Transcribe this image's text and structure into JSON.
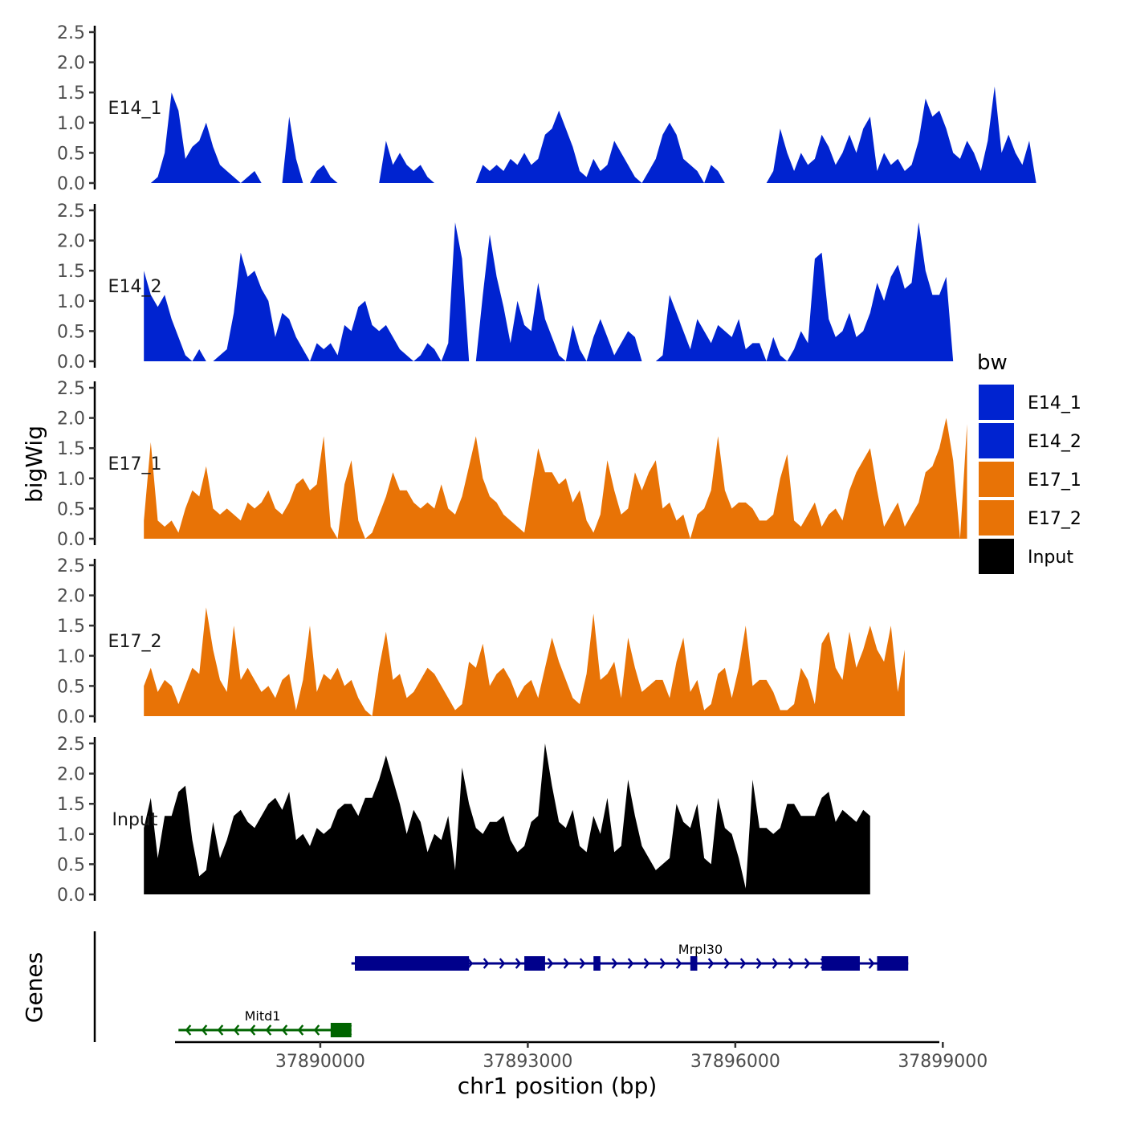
{
  "chart_data": {
    "type": "area",
    "title": "",
    "xlabel": "chr1 position (bp)",
    "ylabel": "bigWig",
    "gene_panel_label": "Genes",
    "legend_title": "bw",
    "xlim": [
      37887900,
      37898950
    ],
    "x_ticks": [
      37890000,
      37893000,
      37896000,
      37899000
    ],
    "x_tick_labels": [
      "37890000",
      "37893000",
      "37896000",
      "37899000"
    ],
    "ylim": [
      0,
      2.5
    ],
    "y_ticks": [
      0,
      0.5,
      1,
      1.5,
      2,
      2.5
    ],
    "y_tick_labels": [
      "0.0",
      "0.5",
      "1.0",
      "1.5",
      "2.0",
      "2.5"
    ],
    "x_start": 37887450,
    "x_step": 100,
    "series": [
      {
        "name": "E14_1",
        "color": "#0023D0",
        "values": [
          0,
          0,
          0.1,
          0.5,
          1.5,
          1.2,
          0.4,
          0.6,
          0.7,
          1,
          0.6,
          0.3,
          0.2,
          0.1,
          0,
          0.1,
          0.2,
          0,
          0,
          0,
          0,
          1.1,
          0.4,
          0,
          0,
          0.2,
          0.3,
          0.1,
          0,
          0,
          0,
          0,
          0,
          0,
          0,
          0.7,
          0.3,
          0.5,
          0.3,
          0.2,
          0.3,
          0.1,
          0,
          0,
          0,
          0,
          0,
          0,
          0,
          0.3,
          0.2,
          0.3,
          0.2,
          0.4,
          0.3,
          0.5,
          0.3,
          0.4,
          0.8,
          0.9,
          1.2,
          0.9,
          0.6,
          0.2,
          0.1,
          0.4,
          0.2,
          0.3,
          0.7,
          0.5,
          0.3,
          0.1,
          0,
          0.2,
          0.4,
          0.8,
          1,
          0.8,
          0.4,
          0.3,
          0.2,
          0,
          0.3,
          0.2,
          0,
          0,
          0,
          0,
          0,
          0,
          0,
          0.2,
          0.9,
          0.5,
          0.2,
          0.5,
          0.3,
          0.4,
          0.8,
          0.6,
          0.3,
          0.5,
          0.8,
          0.5,
          0.9,
          1.1,
          0.2,
          0.5,
          0.3,
          0.4,
          0.2,
          0.3,
          0.7,
          1.4,
          1.1,
          1.2,
          0.9,
          0.5,
          0.4,
          0.7,
          0.5,
          0.2,
          0.7,
          1.6,
          0.5,
          0.8,
          0.5,
          0.3,
          0.7,
          0
        ]
      },
      {
        "name": "E14_2",
        "color": "#0023D0",
        "values": [
          1.5,
          1.1,
          0.9,
          1.1,
          0.7,
          0.4,
          0.1,
          0,
          0.2,
          0,
          0,
          0.1,
          0.2,
          0.8,
          1.8,
          1.4,
          1.5,
          1.2,
          1,
          0.4,
          0.8,
          0.7,
          0.4,
          0.2,
          0,
          0.3,
          0.2,
          0.3,
          0.1,
          0.6,
          0.5,
          0.9,
          1,
          0.6,
          0.5,
          0.6,
          0.4,
          0.2,
          0.1,
          0,
          0.1,
          0.3,
          0.2,
          0,
          0.3,
          2.3,
          1.7,
          0,
          0,
          1.1,
          2.1,
          1.4,
          0.9,
          0.3,
          1,
          0.6,
          0.5,
          1.3,
          0.7,
          0.4,
          0.1,
          0,
          0.6,
          0.2,
          0,
          0.4,
          0.7,
          0.4,
          0.1,
          0.3,
          0.5,
          0.4,
          0,
          0,
          0,
          0.1,
          1.1,
          0.8,
          0.5,
          0.2,
          0.7,
          0.5,
          0.3,
          0.6,
          0.5,
          0.4,
          0.7,
          0.2,
          0.3,
          0.3,
          0,
          0.4,
          0.1,
          0,
          0.2,
          0.5,
          0.3,
          1.7,
          1.8,
          0.7,
          0.4,
          0.5,
          0.8,
          0.4,
          0.5,
          0.8,
          1.3,
          1,
          1.4,
          1.6,
          1.2,
          1.3,
          2.3,
          1.5,
          1.1,
          1.1,
          1.4,
          0
        ]
      },
      {
        "name": "E17_1",
        "color": "#E87306",
        "values": [
          0.3,
          1.6,
          0.3,
          0.2,
          0.3,
          0.1,
          0.5,
          0.8,
          0.7,
          1.2,
          0.5,
          0.4,
          0.5,
          0.4,
          0.3,
          0.6,
          0.5,
          0.6,
          0.8,
          0.5,
          0.4,
          0.6,
          0.9,
          1,
          0.8,
          0.9,
          1.7,
          0.2,
          0,
          0.9,
          1.3,
          0.3,
          0,
          0.1,
          0.4,
          0.7,
          1.1,
          0.8,
          0.8,
          0.6,
          0.5,
          0.6,
          0.5,
          0.9,
          0.5,
          0.4,
          0.7,
          1.2,
          1.7,
          1,
          0.7,
          0.6,
          0.4,
          0.3,
          0.2,
          0.1,
          0.8,
          1.5,
          1.1,
          1.1,
          0.9,
          1,
          0.6,
          0.8,
          0.3,
          0.1,
          0.4,
          1.3,
          0.8,
          0.4,
          0.5,
          1.1,
          0.8,
          1.1,
          1.3,
          0.5,
          0.6,
          0.3,
          0.4,
          0,
          0.4,
          0.5,
          0.8,
          1.7,
          0.8,
          0.5,
          0.6,
          0.6,
          0.5,
          0.3,
          0.3,
          0.4,
          1,
          1.4,
          0.3,
          0.2,
          0.4,
          0.6,
          0.2,
          0.4,
          0.5,
          0.3,
          0.8,
          1.1,
          1.3,
          1.5,
          0.8,
          0.2,
          0.4,
          0.6,
          0.2,
          0.4,
          0.6,
          1.1,
          1.2,
          1.5,
          2,
          1.3,
          0,
          1.9
        ]
      },
      {
        "name": "E17_2",
        "color": "#E87306",
        "values": [
          0.5,
          0.8,
          0.4,
          0.6,
          0.5,
          0.2,
          0.5,
          0.8,
          0.7,
          1.8,
          1.1,
          0.6,
          0.4,
          1.5,
          0.6,
          0.8,
          0.6,
          0.4,
          0.5,
          0.3,
          0.6,
          0.7,
          0.1,
          0.6,
          1.5,
          0.4,
          0.7,
          0.6,
          0.8,
          0.5,
          0.6,
          0.3,
          0.1,
          0,
          0.8,
          1.4,
          0.6,
          0.7,
          0.3,
          0.4,
          0.6,
          0.8,
          0.7,
          0.5,
          0.3,
          0.1,
          0.2,
          0.9,
          0.8,
          1.2,
          0.5,
          0.7,
          0.8,
          0.6,
          0.3,
          0.5,
          0.6,
          0.3,
          0.8,
          1.3,
          0.9,
          0.6,
          0.3,
          0.2,
          0.7,
          1.7,
          0.6,
          0.7,
          0.9,
          0.3,
          1.3,
          0.8,
          0.4,
          0.5,
          0.6,
          0.6,
          0.3,
          0.9,
          1.3,
          0.4,
          0.6,
          0.1,
          0.2,
          0.7,
          0.8,
          0.3,
          0.8,
          1.5,
          0.5,
          0.6,
          0.6,
          0.4,
          0.1,
          0.1,
          0.2,
          0.8,
          0.6,
          0.2,
          1.2,
          1.4,
          0.8,
          0.6,
          1.4,
          0.8,
          1.1,
          1.5,
          1.1,
          0.9,
          1.5,
          0.4,
          1.1
        ]
      },
      {
        "name": "Input",
        "color": "#000000",
        "values": [
          1.1,
          1.6,
          0.6,
          1.3,
          1.3,
          1.7,
          1.8,
          0.9,
          0.3,
          0.4,
          1.2,
          0.6,
          0.9,
          1.3,
          1.4,
          1.2,
          1.1,
          1.3,
          1.5,
          1.6,
          1.4,
          1.7,
          0.9,
          1,
          0.8,
          1.1,
          1,
          1.1,
          1.4,
          1.5,
          1.5,
          1.3,
          1.6,
          1.6,
          1.9,
          2.3,
          1.9,
          1.5,
          1,
          1.4,
          1.2,
          0.7,
          1,
          0.9,
          1.3,
          0.4,
          2.1,
          1.5,
          1.1,
          1,
          1.2,
          1.2,
          1.3,
          0.9,
          0.7,
          0.8,
          1.2,
          1.3,
          2.5,
          1.8,
          1.2,
          1.1,
          1.4,
          0.8,
          0.7,
          1.3,
          1,
          1.6,
          0.7,
          0.8,
          1.9,
          1.3,
          0.8,
          0.6,
          0.4,
          0.5,
          0.6,
          1.5,
          1.2,
          1.1,
          1.5,
          0.6,
          0.5,
          1.6,
          1.1,
          1,
          0.6,
          0.1,
          1.9,
          1.1,
          1.1,
          1,
          1.1,
          1.5,
          1.5,
          1.3,
          1.3,
          1.3,
          1.6,
          1.7,
          1.2,
          1.4,
          1.3,
          1.2,
          1.4,
          1.3
        ]
      }
    ],
    "genes": [
      {
        "name": "Mitd1",
        "strand": "-",
        "color": "#006400",
        "start": 37887950,
        "end": 37890450,
        "exons": [
          [
            37890150,
            37890450
          ]
        ]
      },
      {
        "name": "Mrpl30",
        "strand": "+",
        "color": "#00008B",
        "start": 37890450,
        "end": 37898500,
        "exons": [
          [
            37890500,
            37892150
          ],
          [
            37892950,
            37893250
          ],
          [
            37893950,
            37894050
          ],
          [
            37895350,
            37895450
          ],
          [
            37897250,
            37897800
          ],
          [
            37898050,
            37898500
          ]
        ]
      }
    ]
  }
}
